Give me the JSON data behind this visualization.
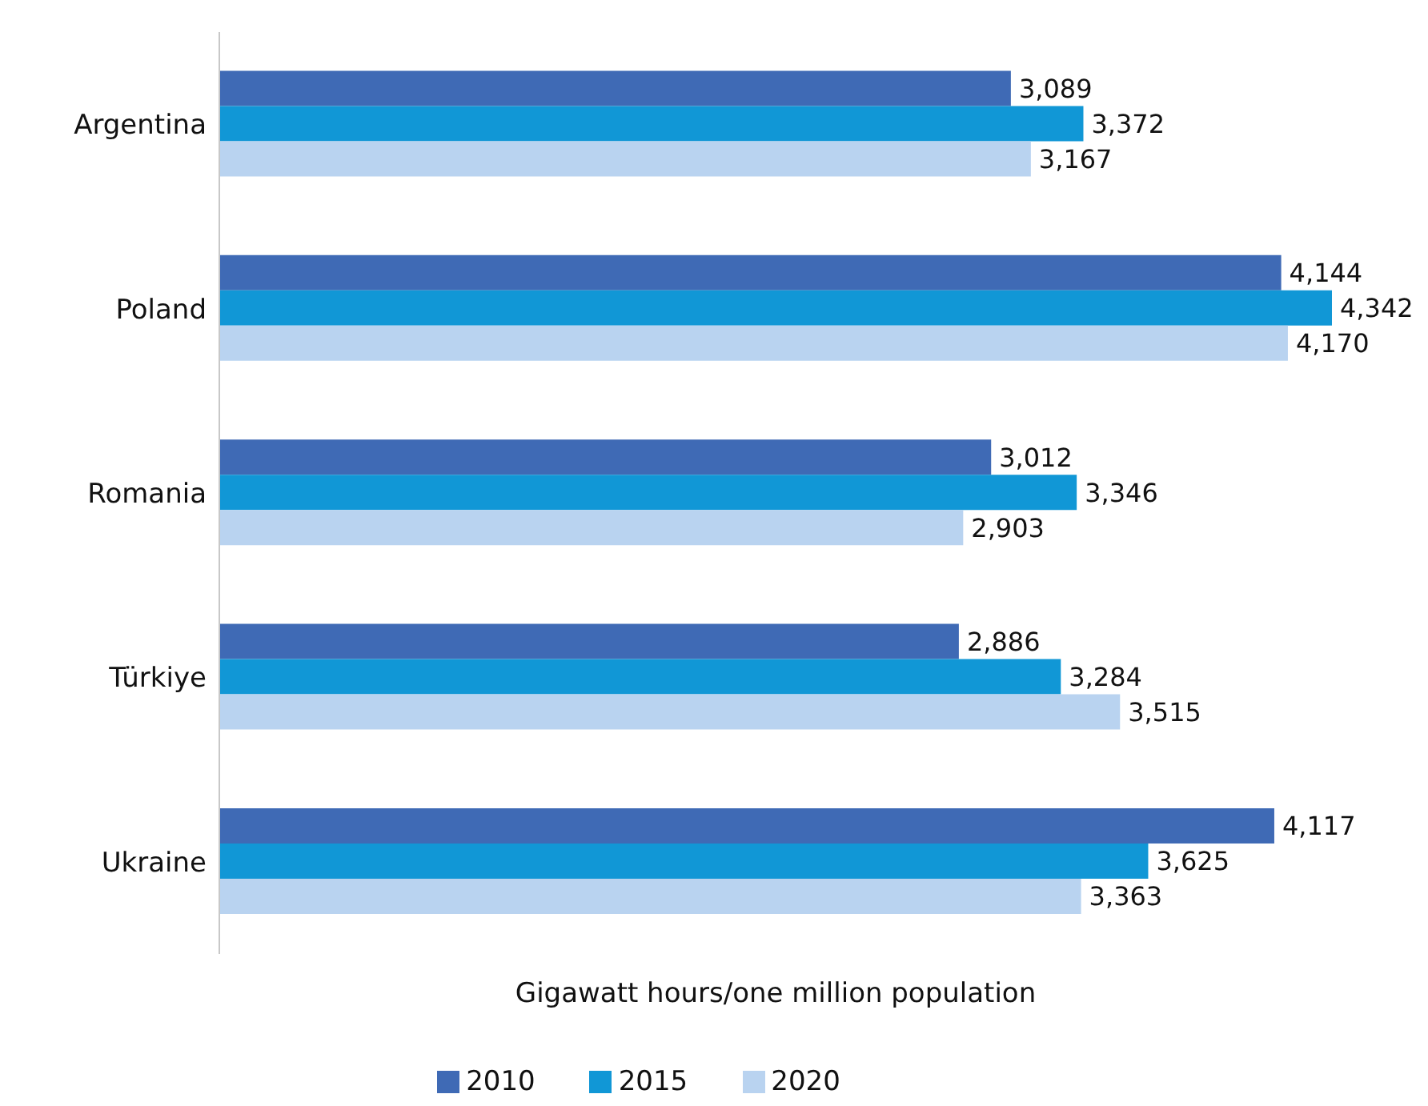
{
  "chart_data": {
    "type": "bar",
    "orientation": "horizontal",
    "xlabel": "Gigawatt hours/one million population",
    "categories": [
      "Argentina",
      "Poland",
      "Romania",
      "Türkiye",
      "Ukraine"
    ],
    "series": [
      {
        "name": "2010",
        "color": "#3f6ab5",
        "values": [
          3089,
          4144,
          3012,
          2886,
          4117
        ],
        "value_labels": [
          "3,089",
          "4,144",
          "3,012",
          "2,886",
          "4,117"
        ]
      },
      {
        "name": "2015",
        "color": "#1197d6",
        "values": [
          3372,
          4342,
          3346,
          3284,
          3625
        ],
        "value_labels": [
          "3,372",
          "4,342",
          "3,346",
          "3,284",
          "3,625"
        ]
      },
      {
        "name": "2020",
        "color": "#b9d3f0",
        "values": [
          3167,
          4170,
          2903,
          3515,
          3363
        ],
        "value_labels": [
          "3,167",
          "4,170",
          "2,903",
          "3,515",
          "3,363"
        ]
      }
    ],
    "legend": "bottom"
  }
}
